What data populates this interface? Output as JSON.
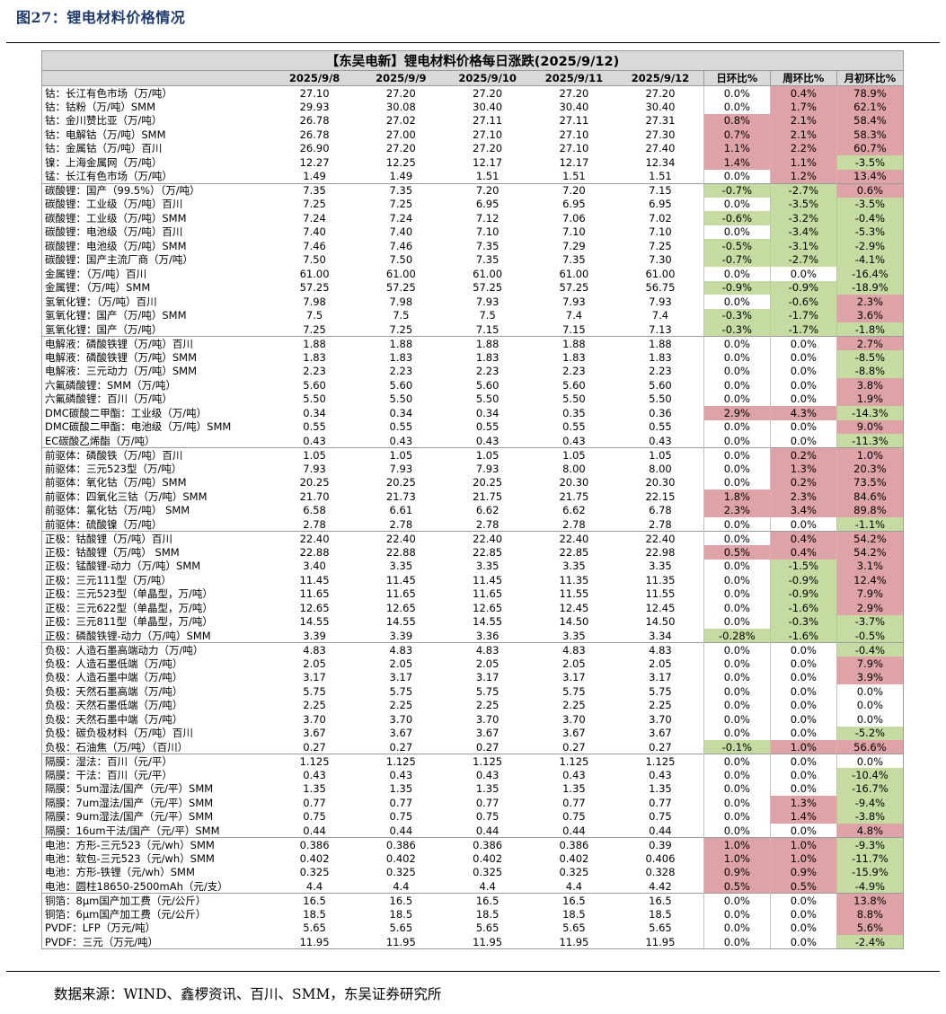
{
  "figure_title": "图27：锂电材料价格情况",
  "table_title": "【东吴电新】锂电材料价格每日涨跌(2025/9/12)",
  "headers": [
    "2025/9/8",
    "2025/9/9",
    "2025/9/10",
    "2025/9/11",
    "2025/9/12",
    "日环比%",
    "周环比%",
    "月初环比%"
  ],
  "colors": {
    "red": "#dea3a6",
    "green": "#c6dba2",
    "header": "#d9d9d9",
    "title": "#1f3a6b"
  },
  "rows": [
    {
      "name": "钴：长江有色市场（万/吨）",
      "v": [
        "27.10",
        "27.20",
        "27.20",
        "27.20",
        "27.20"
      ],
      "p": [
        "0.0%",
        "0.4%",
        "78.9%"
      ],
      "c": [
        "",
        "red",
        "red"
      ],
      "sep": false
    },
    {
      "name": "钴：钴粉（万/吨）SMM",
      "v": [
        "29.93",
        "30.08",
        "30.40",
        "30.40",
        "30.40"
      ],
      "p": [
        "0.0%",
        "1.7%",
        "62.1%"
      ],
      "c": [
        "",
        "red",
        "red"
      ],
      "sep": false
    },
    {
      "name": "钴：金川赞比亚（万/吨）",
      "v": [
        "26.78",
        "27.02",
        "27.11",
        "27.11",
        "27.31"
      ],
      "p": [
        "0.8%",
        "2.1%",
        "58.4%"
      ],
      "c": [
        "red",
        "red",
        "red"
      ],
      "sep": false
    },
    {
      "name": "钴：电解钴（万/吨）SMM",
      "v": [
        "26.78",
        "27.00",
        "27.10",
        "27.10",
        "27.30"
      ],
      "p": [
        "0.7%",
        "2.1%",
        "58.3%"
      ],
      "c": [
        "red",
        "red",
        "red"
      ],
      "sep": false
    },
    {
      "name": "钴：金属钴（万/吨）百川",
      "v": [
        "26.90",
        "27.20",
        "27.20",
        "27.10",
        "27.40"
      ],
      "p": [
        "1.1%",
        "2.2%",
        "60.7%"
      ],
      "c": [
        "red",
        "red",
        "red"
      ],
      "sep": false
    },
    {
      "name": "镍：上海金属网（万/吨）",
      "v": [
        "12.27",
        "12.25",
        "12.17",
        "12.17",
        "12.34"
      ],
      "p": [
        "1.4%",
        "1.1%",
        "-3.5%"
      ],
      "c": [
        "red",
        "red",
        "green"
      ],
      "sep": false
    },
    {
      "name": "锰：长江有色市场（万/吨）",
      "v": [
        "1.49",
        "1.49",
        "1.51",
        "1.51",
        "1.51"
      ],
      "p": [
        "0.0%",
        "1.2%",
        "13.4%"
      ],
      "c": [
        "",
        "red",
        "red"
      ],
      "sep": false
    },
    {
      "name": "碳酸锂：国产（99.5%）（万/吨）",
      "v": [
        "7.35",
        "7.35",
        "7.20",
        "7.20",
        "7.15"
      ],
      "p": [
        "-0.7%",
        "-2.7%",
        "0.6%"
      ],
      "c": [
        "green",
        "green",
        "red"
      ],
      "sep": true
    },
    {
      "name": "碳酸锂：工业级（万/吨）百川",
      "v": [
        "7.25",
        "7.25",
        "6.95",
        "6.95",
        "6.95"
      ],
      "p": [
        "0.0%",
        "-3.5%",
        "-3.5%"
      ],
      "c": [
        "",
        "green",
        "green"
      ],
      "sep": false
    },
    {
      "name": "碳酸锂：工业级（万/吨）SMM",
      "v": [
        "7.24",
        "7.24",
        "7.12",
        "7.06",
        "7.02"
      ],
      "p": [
        "-0.6%",
        "-3.2%",
        "-0.4%"
      ],
      "c": [
        "green",
        "green",
        "green"
      ],
      "sep": false
    },
    {
      "name": "碳酸锂：电池级（万/吨）百川",
      "v": [
        "7.40",
        "7.40",
        "7.10",
        "7.10",
        "7.10"
      ],
      "p": [
        "0.0%",
        "-3.4%",
        "-5.3%"
      ],
      "c": [
        "",
        "green",
        "green"
      ],
      "sep": false
    },
    {
      "name": "碳酸锂：电池级（万/吨）SMM",
      "v": [
        "7.46",
        "7.46",
        "7.35",
        "7.29",
        "7.25"
      ],
      "p": [
        "-0.5%",
        "-3.1%",
        "-2.9%"
      ],
      "c": [
        "green",
        "green",
        "green"
      ],
      "sep": false
    },
    {
      "name": "碳酸锂：国产主流厂商（万/吨）",
      "v": [
        "7.50",
        "7.50",
        "7.35",
        "7.35",
        "7.30"
      ],
      "p": [
        "-0.7%",
        "-2.7%",
        "-4.1%"
      ],
      "c": [
        "green",
        "green",
        "green"
      ],
      "sep": false
    },
    {
      "name": "金属锂：（万/吨）百川",
      "v": [
        "61.00",
        "61.00",
        "61.00",
        "61.00",
        "61.00"
      ],
      "p": [
        "0.0%",
        "0.0%",
        "-16.4%"
      ],
      "c": [
        "",
        "",
        "green"
      ],
      "sep": false
    },
    {
      "name": "金属锂：（万/吨）SMM",
      "v": [
        "57.25",
        "57.25",
        "57.25",
        "57.25",
        "56.75"
      ],
      "p": [
        "-0.9%",
        "-0.9%",
        "-18.9%"
      ],
      "c": [
        "green",
        "green",
        "green"
      ],
      "sep": false
    },
    {
      "name": "氢氧化锂：（万/吨）百川",
      "v": [
        "7.98",
        "7.98",
        "7.93",
        "7.93",
        "7.93"
      ],
      "p": [
        "0.0%",
        "-0.6%",
        "2.3%"
      ],
      "c": [
        "",
        "green",
        "red"
      ],
      "sep": false
    },
    {
      "name": "氢氧化锂：国产（万/吨）SMM",
      "v": [
        "7.5",
        "7.5",
        "7.5",
        "7.4",
        "7.4"
      ],
      "p": [
        "-0.3%",
        "-1.7%",
        "3.6%"
      ],
      "c": [
        "green",
        "green",
        "red"
      ],
      "sep": false
    },
    {
      "name": "氢氧化锂：国产（万/吨）",
      "v": [
        "7.25",
        "7.25",
        "7.15",
        "7.15",
        "7.13"
      ],
      "p": [
        "-0.3%",
        "-1.7%",
        "-1.8%"
      ],
      "c": [
        "green",
        "green",
        "green"
      ],
      "sep": false
    },
    {
      "name": "电解液：磷酸铁锂（万/吨）百川",
      "v": [
        "1.88",
        "1.88",
        "1.88",
        "1.88",
        "1.88"
      ],
      "p": [
        "0.0%",
        "0.0%",
        "2.7%"
      ],
      "c": [
        "",
        "",
        "red"
      ],
      "sep": true
    },
    {
      "name": "电解液：磷酸铁锂（万/吨）SMM",
      "v": [
        "1.83",
        "1.83",
        "1.83",
        "1.83",
        "1.83"
      ],
      "p": [
        "0.0%",
        "0.0%",
        "-8.5%"
      ],
      "c": [
        "",
        "",
        "green"
      ],
      "sep": false
    },
    {
      "name": "电解液：三元动力（万/吨）SMM",
      "v": [
        "2.23",
        "2.23",
        "2.23",
        "2.23",
        "2.23"
      ],
      "p": [
        "0.0%",
        "0.0%",
        "-8.8%"
      ],
      "c": [
        "",
        "",
        "green"
      ],
      "sep": false
    },
    {
      "name": "六氟磷酸锂：SMM（万/吨）",
      "v": [
        "5.60",
        "5.60",
        "5.60",
        "5.60",
        "5.60"
      ],
      "p": [
        "0.0%",
        "0.0%",
        "3.8%"
      ],
      "c": [
        "",
        "",
        "red"
      ],
      "sep": false
    },
    {
      "name": "六氟磷酸锂：百川（万/吨）",
      "v": [
        "5.50",
        "5.50",
        "5.50",
        "5.50",
        "5.50"
      ],
      "p": [
        "0.0%",
        "0.0%",
        "1.9%"
      ],
      "c": [
        "",
        "",
        "red"
      ],
      "sep": false
    },
    {
      "name": "DMC碳酸二甲酯：工业级（万/吨）",
      "v": [
        "0.34",
        "0.34",
        "0.34",
        "0.35",
        "0.36"
      ],
      "p": [
        "2.9%",
        "4.3%",
        "-14.3%"
      ],
      "c": [
        "red",
        "red",
        "green"
      ],
      "sep": false
    },
    {
      "name": "DMC碳酸二甲酯：电池级（万/吨）SMM",
      "v": [
        "0.55",
        "0.55",
        "0.55",
        "0.55",
        "0.55"
      ],
      "p": [
        "0.0%",
        "0.0%",
        "9.0%"
      ],
      "c": [
        "",
        "",
        "red"
      ],
      "sep": false
    },
    {
      "name": "EC碳酸乙烯酯（万/吨）",
      "v": [
        "0.43",
        "0.43",
        "0.43",
        "0.43",
        "0.43"
      ],
      "p": [
        "0.0%",
        "0.0%",
        "-11.3%"
      ],
      "c": [
        "",
        "",
        "green"
      ],
      "sep": false
    },
    {
      "name": "前驱体：磷酸铁（万/吨）百川",
      "v": [
        "1.05",
        "1.05",
        "1.05",
        "1.05",
        "1.05"
      ],
      "p": [
        "0.0%",
        "0.2%",
        "1.0%"
      ],
      "c": [
        "",
        "red",
        "red"
      ],
      "sep": true
    },
    {
      "name": "前驱体：三元523型（万/吨）",
      "v": [
        "7.93",
        "7.93",
        "7.93",
        "8.00",
        "8.00"
      ],
      "p": [
        "0.0%",
        "1.3%",
        "20.3%"
      ],
      "c": [
        "",
        "red",
        "red"
      ],
      "sep": false
    },
    {
      "name": "前驱体：氧化钴（万/吨）SMM",
      "v": [
        "20.25",
        "20.25",
        "20.25",
        "20.30",
        "20.30"
      ],
      "p": [
        "0.0%",
        "0.2%",
        "73.5%"
      ],
      "c": [
        "",
        "red",
        "red"
      ],
      "sep": false
    },
    {
      "name": "前驱体：四氧化三钴（万/吨）SMM",
      "v": [
        "21.70",
        "21.73",
        "21.75",
        "21.75",
        "22.15"
      ],
      "p": [
        "1.8%",
        "2.3%",
        "84.6%"
      ],
      "c": [
        "red",
        "red",
        "red"
      ],
      "sep": false
    },
    {
      "name": "前驱体：氯化钴（万/吨） SMM",
      "v": [
        "6.58",
        "6.61",
        "6.62",
        "6.62",
        "6.78"
      ],
      "p": [
        "2.3%",
        "3.4%",
        "89.8%"
      ],
      "c": [
        "red",
        "red",
        "red"
      ],
      "sep": false
    },
    {
      "name": "前驱体：硫酸镍（万/吨）",
      "v": [
        "2.78",
        "2.78",
        "2.78",
        "2.78",
        "2.78"
      ],
      "p": [
        "0.0%",
        "0.0%",
        "-1.1%"
      ],
      "c": [
        "",
        "",
        "green"
      ],
      "sep": false
    },
    {
      "name": "正极：钴酸锂（万/吨）百川",
      "v": [
        "22.40",
        "22.40",
        "22.40",
        "22.40",
        "22.40"
      ],
      "p": [
        "0.0%",
        "0.4%",
        "54.2%"
      ],
      "c": [
        "",
        "red",
        "red"
      ],
      "sep": true
    },
    {
      "name": "正极：钴酸锂（万/吨） SMM",
      "v": [
        "22.88",
        "22.88",
        "22.85",
        "22.85",
        "22.98"
      ],
      "p": [
        "0.5%",
        "0.4%",
        "54.2%"
      ],
      "c": [
        "red",
        "red",
        "red"
      ],
      "sep": false
    },
    {
      "name": "正极：锰酸锂-动力（万/吨）SMM",
      "v": [
        "3.40",
        "3.35",
        "3.35",
        "3.35",
        "3.35"
      ],
      "p": [
        "0.0%",
        "-1.5%",
        "3.1%"
      ],
      "c": [
        "",
        "green",
        "red"
      ],
      "sep": false
    },
    {
      "name": "正极：三元111型（万/吨）",
      "v": [
        "11.45",
        "11.45",
        "11.45",
        "11.35",
        "11.35"
      ],
      "p": [
        "0.0%",
        "-0.9%",
        "12.4%"
      ],
      "c": [
        "",
        "green",
        "red"
      ],
      "sep": false
    },
    {
      "name": "正极：三元523型（单晶型，万/吨）",
      "v": [
        "11.65",
        "11.65",
        "11.65",
        "11.55",
        "11.55"
      ],
      "p": [
        "0.0%",
        "-0.9%",
        "7.9%"
      ],
      "c": [
        "",
        "green",
        "red"
      ],
      "sep": false
    },
    {
      "name": "正极：三元622型（单晶型，万/吨）",
      "v": [
        "12.65",
        "12.65",
        "12.65",
        "12.45",
        "12.45"
      ],
      "p": [
        "0.0%",
        "-1.6%",
        "2.9%"
      ],
      "c": [
        "",
        "green",
        "red"
      ],
      "sep": false
    },
    {
      "name": "正极：三元811型（单晶型，万/吨）",
      "v": [
        "14.55",
        "14.55",
        "14.55",
        "14.50",
        "14.50"
      ],
      "p": [
        "0.0%",
        "-0.3%",
        "-3.7%"
      ],
      "c": [
        "",
        "green",
        "green"
      ],
      "sep": false
    },
    {
      "name": "正极：磷酸铁锂-动力（万/吨）SMM",
      "v": [
        "3.39",
        "3.39",
        "3.36",
        "3.35",
        "3.34"
      ],
      "p": [
        "-0.28%",
        "-1.6%",
        "-0.5%"
      ],
      "c": [
        "green",
        "green",
        "green"
      ],
      "sep": false
    },
    {
      "name": "负极：人造石墨高端动力（万/吨）",
      "v": [
        "4.83",
        "4.83",
        "4.83",
        "4.83",
        "4.83"
      ],
      "p": [
        "0.0%",
        "0.0%",
        "-0.4%"
      ],
      "c": [
        "",
        "",
        "green"
      ],
      "sep": true
    },
    {
      "name": "负极：人造石墨低端（万/吨）",
      "v": [
        "2.05",
        "2.05",
        "2.05",
        "2.05",
        "2.05"
      ],
      "p": [
        "0.0%",
        "0.0%",
        "7.9%"
      ],
      "c": [
        "",
        "",
        "red"
      ],
      "sep": false
    },
    {
      "name": "负极：人造石墨中端（万/吨）",
      "v": [
        "3.17",
        "3.17",
        "3.17",
        "3.17",
        "3.17"
      ],
      "p": [
        "0.0%",
        "0.0%",
        "3.9%"
      ],
      "c": [
        "",
        "",
        "red"
      ],
      "sep": false
    },
    {
      "name": "负极：天然石墨高端（万/吨）",
      "v": [
        "5.75",
        "5.75",
        "5.75",
        "5.75",
        "5.75"
      ],
      "p": [
        "0.0%",
        "0.0%",
        "0.0%"
      ],
      "c": [
        "",
        "",
        ""
      ],
      "sep": false
    },
    {
      "name": "负极：天然石墨低端（万/吨）",
      "v": [
        "2.25",
        "2.25",
        "2.25",
        "2.25",
        "2.25"
      ],
      "p": [
        "0.0%",
        "0.0%",
        "0.0%"
      ],
      "c": [
        "",
        "",
        ""
      ],
      "sep": false
    },
    {
      "name": "负极：天然石墨中端（万/吨）",
      "v": [
        "3.70",
        "3.70",
        "3.70",
        "3.70",
        "3.70"
      ],
      "p": [
        "0.0%",
        "0.0%",
        "0.0%"
      ],
      "c": [
        "",
        "",
        ""
      ],
      "sep": false
    },
    {
      "name": "负极：碳负极材料（万/吨）百川",
      "v": [
        "3.67",
        "3.67",
        "3.67",
        "3.67",
        "3.67"
      ],
      "p": [
        "0.0%",
        "0.0%",
        "-5.2%"
      ],
      "c": [
        "",
        "",
        "green"
      ],
      "sep": false
    },
    {
      "name": "负极：石油焦（万/吨）（百川）",
      "v": [
        "0.27",
        "0.27",
        "0.27",
        "0.27",
        "0.27"
      ],
      "p": [
        "-0.1%",
        "1.0%",
        "56.6%"
      ],
      "c": [
        "green",
        "red",
        "red"
      ],
      "sep": false
    },
    {
      "name": "隔膜：湿法：百川（元/平）",
      "v": [
        "1.125",
        "1.125",
        "1.125",
        "1.125",
        "1.125"
      ],
      "p": [
        "0.0%",
        "0.0%",
        "0.0%"
      ],
      "c": [
        "",
        "",
        ""
      ],
      "sep": true
    },
    {
      "name": "隔膜：干法：百川（元/平）",
      "v": [
        "0.43",
        "0.43",
        "0.43",
        "0.43",
        "0.43"
      ],
      "p": [
        "0.0%",
        "0.0%",
        "-10.4%"
      ],
      "c": [
        "",
        "",
        "green"
      ],
      "sep": false
    },
    {
      "name": "隔膜：5um湿法/国产（元/平）SMM",
      "v": [
        "1.35",
        "1.35",
        "1.35",
        "1.35",
        "1.35"
      ],
      "p": [
        "0.0%",
        "0.0%",
        "-16.7%"
      ],
      "c": [
        "",
        "",
        "green"
      ],
      "sep": false
    },
    {
      "name": "隔膜：7um湿法/国产（元/平）SMM",
      "v": [
        "0.77",
        "0.77",
        "0.77",
        "0.77",
        "0.77"
      ],
      "p": [
        "0.0%",
        "1.3%",
        "-9.4%"
      ],
      "c": [
        "",
        "red",
        "green"
      ],
      "sep": false
    },
    {
      "name": "隔膜：9um湿法/国产（元/平）SMM",
      "v": [
        "0.75",
        "0.75",
        "0.75",
        "0.75",
        "0.75"
      ],
      "p": [
        "0.0%",
        "1.4%",
        "-3.8%"
      ],
      "c": [
        "",
        "red",
        "green"
      ],
      "sep": false
    },
    {
      "name": "隔膜：16um干法/国产（元/平）SMM",
      "v": [
        "0.44",
        "0.44",
        "0.44",
        "0.44",
        "0.44"
      ],
      "p": [
        "0.0%",
        "0.0%",
        "4.8%"
      ],
      "c": [
        "",
        "",
        "red"
      ],
      "sep": false
    },
    {
      "name": "电池：方形-三元523（元/wh）SMM",
      "v": [
        "0.386",
        "0.386",
        "0.386",
        "0.386",
        "0.39"
      ],
      "p": [
        "1.0%",
        "1.0%",
        "-9.3%"
      ],
      "c": [
        "red",
        "red",
        "green"
      ],
      "sep": true
    },
    {
      "name": "电池：软包-三元523（元/wh）SMM",
      "v": [
        "0.402",
        "0.402",
        "0.402",
        "0.402",
        "0.406"
      ],
      "p": [
        "1.0%",
        "1.0%",
        "-11.7%"
      ],
      "c": [
        "red",
        "red",
        "green"
      ],
      "sep": false
    },
    {
      "name": "电池：方形-铁锂（元/wh）SMM",
      "v": [
        "0.325",
        "0.325",
        "0.325",
        "0.325",
        "0.328"
      ],
      "p": [
        "0.9%",
        "0.9%",
        "-15.9%"
      ],
      "c": [
        "red",
        "red",
        "green"
      ],
      "sep": false
    },
    {
      "name": "电池：圆柱18650-2500mAh（元/支）",
      "v": [
        "4.4",
        "4.4",
        "4.4",
        "4.4",
        "4.42"
      ],
      "p": [
        "0.5%",
        "0.5%",
        "-4.9%"
      ],
      "c": [
        "red",
        "red",
        "green"
      ],
      "sep": false
    },
    {
      "name": "铜箔：8μm国产加工费（元/公斤）",
      "v": [
        "16.5",
        "16.5",
        "16.5",
        "16.5",
        "16.5"
      ],
      "p": [
        "0.0%",
        "0.0%",
        "13.8%"
      ],
      "c": [
        "",
        "",
        "red"
      ],
      "sep": true
    },
    {
      "name": "铜箔：6μm国产加工费（元/公斤）",
      "v": [
        "18.5",
        "18.5",
        "18.5",
        "18.5",
        "18.5"
      ],
      "p": [
        "0.0%",
        "0.0%",
        "8.8%"
      ],
      "c": [
        "",
        "",
        "red"
      ],
      "sep": false
    },
    {
      "name": "PVDF：LFP（万元/吨）",
      "v": [
        "5.65",
        "5.65",
        "5.65",
        "5.65",
        "5.65"
      ],
      "p": [
        "0.0%",
        "0.0%",
        "5.6%"
      ],
      "c": [
        "",
        "",
        "red"
      ],
      "sep": false
    },
    {
      "name": "PVDF：三元（万元/吨）",
      "v": [
        "11.95",
        "11.95",
        "11.95",
        "11.95",
        "11.95"
      ],
      "p": [
        "0.0%",
        "0.0%",
        "-2.4%"
      ],
      "c": [
        "",
        "",
        "green"
      ],
      "sep": false
    }
  ],
  "footer": "数据来源：WIND、鑫椤资讯、百川、SMM，东吴证券研究所"
}
